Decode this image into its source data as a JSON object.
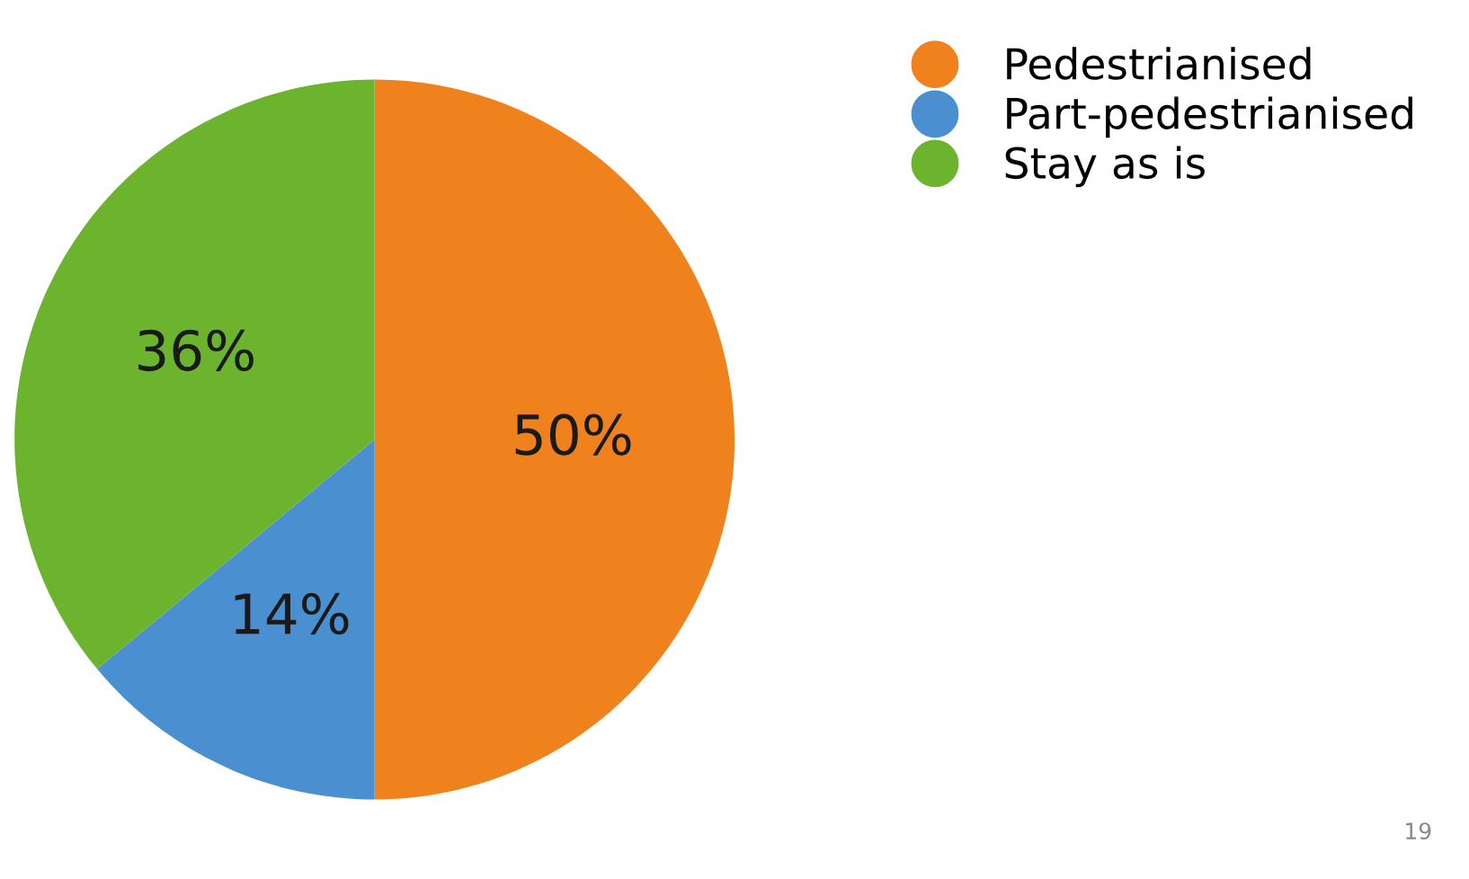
{
  "chart_data": {
    "type": "pie",
    "categories": [
      "Pedestrianised",
      "Part-pedestrianised",
      "Stay as is"
    ],
    "values": [
      50,
      14,
      36
    ],
    "colors": [
      "#f0821e",
      "#4a8fd0",
      "#6cb42e"
    ],
    "value_labels": [
      "50%",
      "14%",
      "36%"
    ],
    "legend": "top right",
    "annotations": [
      "19"
    ]
  }
}
